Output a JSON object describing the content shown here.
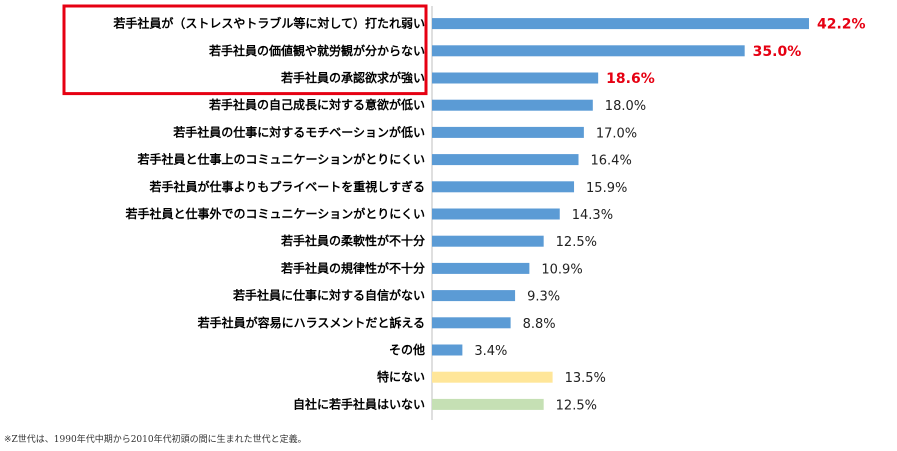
{
  "chart_data": {
    "type": "bar",
    "orientation": "horizontal",
    "categories": [
      "若手社員が（ストレスやトラブル等に対して）打たれ弱い",
      "若手社員の価値観や就労観が分からない",
      "若手社員の承認欲求が強い",
      "若手社員の自己成長に対する意欲が低い",
      "若手社員の仕事に対するモチベーションが低い",
      "若手社員と仕事上のコミュニケーションがとりにくい",
      "若手社員が仕事よりもプライベートを重視しすぎる",
      "若手社員と仕事外でのコミュニケーションがとりにくい",
      "若手社員の柔軟性が不十分",
      "若手社員の規律性が不十分",
      "若手社員に仕事に対する自信がない",
      "若手社員が容易にハラスメントだと訴える",
      "その他",
      "特にない",
      "自社に若手社員はいない"
    ],
    "values": [
      42.2,
      35.0,
      18.6,
      18.0,
      17.0,
      16.4,
      15.9,
      14.3,
      12.5,
      10.9,
      9.3,
      8.8,
      3.4,
      13.5,
      12.5
    ],
    "value_labels": [
      "42.2%",
      "35.0%",
      "18.6%",
      "18.0%",
      "17.0%",
      "16.4%",
      "15.9%",
      "14.3%",
      "12.5%",
      "10.9%",
      "9.3%",
      "8.8%",
      "3.4%",
      "13.5%",
      "12.5%"
    ],
    "bar_colors": [
      "#5b9bd5",
      "#5b9bd5",
      "#5b9bd5",
      "#5b9bd5",
      "#5b9bd5",
      "#5b9bd5",
      "#5b9bd5",
      "#5b9bd5",
      "#5b9bd5",
      "#5b9bd5",
      "#5b9bd5",
      "#5b9bd5",
      "#5b9bd5",
      "#ffe699",
      "#c5e0b4"
    ],
    "highlighted_indices": [
      0,
      1,
      2
    ],
    "highlight_color": "#e60012",
    "xlim": [
      0,
      45
    ],
    "grid": false
  },
  "footnote": "※Z世代は、1990年代中期から2010年代初頭の間に生まれた世代と定義。"
}
